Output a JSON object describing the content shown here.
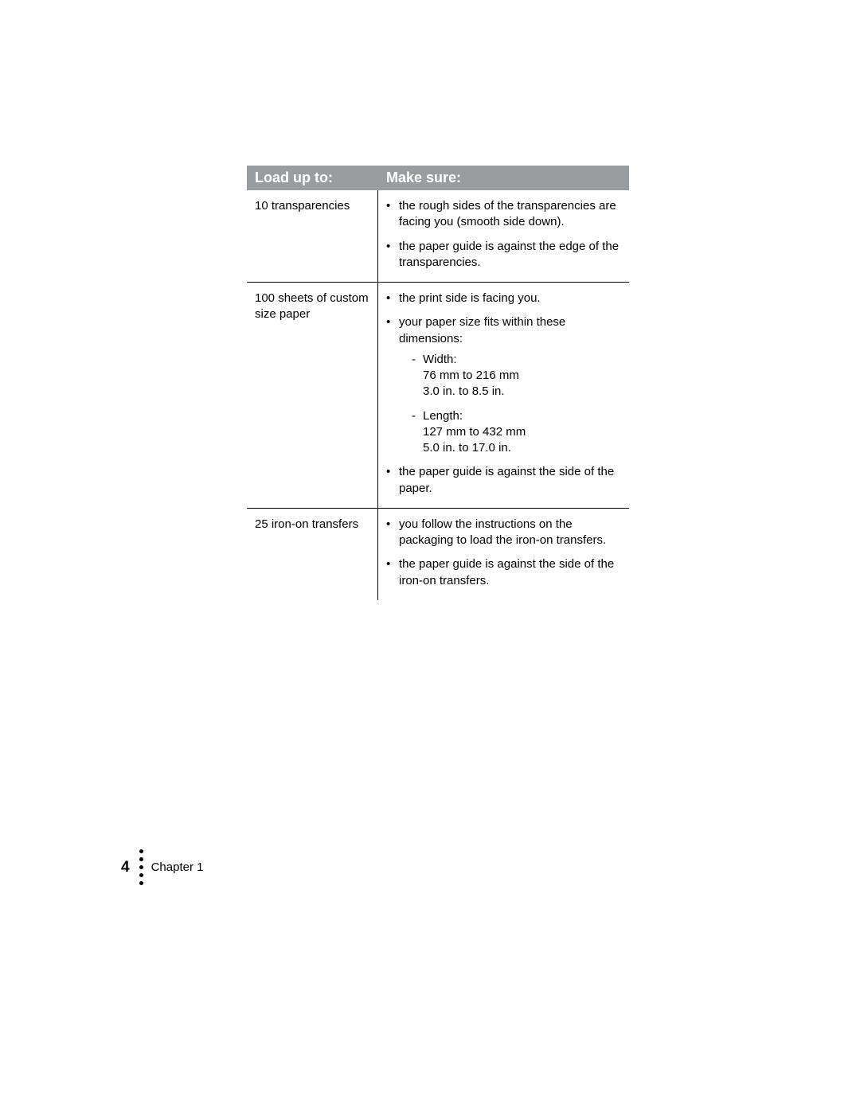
{
  "table": {
    "header": {
      "left": "Load up to:",
      "right": "Make sure:"
    },
    "rows": [
      {
        "left": "10 transparencies",
        "bullets": [
          {
            "text": "the rough sides of the transparencies are facing you (smooth side down)."
          },
          {
            "text": "the paper guide is against the edge of the transparencies."
          }
        ]
      },
      {
        "left": "100 sheets of custom size paper",
        "bullets": [
          {
            "text": "the print side is facing you."
          },
          {
            "text": "your paper size fits within these dimensions:",
            "sub": [
              {
                "label": "Width:",
                "line1": "76 mm to 216 mm",
                "line2": "3.0 in. to 8.5 in."
              },
              {
                "label": "Length:",
                "line1": "127 mm to 432 mm",
                "line2": "5.0 in. to 17.0 in."
              }
            ]
          },
          {
            "text": "the paper guide is against the side of the paper."
          }
        ]
      },
      {
        "left": "25 iron-on transfers",
        "bullets": [
          {
            "text": "you follow the instructions on the packaging to load the iron-on transfers."
          },
          {
            "text": "the paper guide is against the side of the iron-on transfers."
          }
        ]
      }
    ]
  },
  "footer": {
    "page_number": "4",
    "chapter": "Chapter 1"
  },
  "colors": {
    "header_bg": "#999da0",
    "header_text": "#ffffff",
    "body_text": "#000000",
    "page_bg": "#ffffff"
  }
}
